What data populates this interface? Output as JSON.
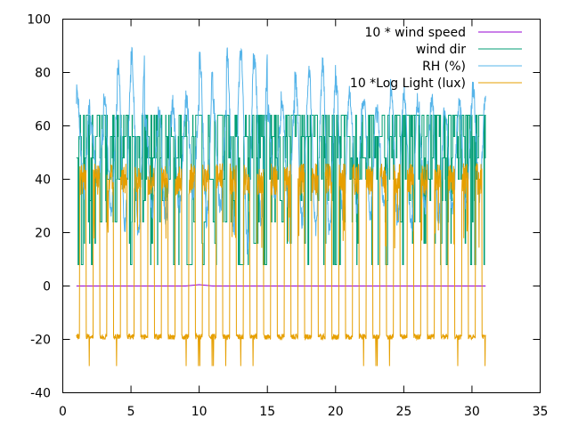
{
  "chart_data": {
    "type": "line",
    "title": "",
    "xlabel": "",
    "ylabel": "",
    "xlim": [
      0,
      35
    ],
    "ylim": [
      -40,
      100
    ],
    "x_ticks": [
      "0",
      "5",
      "10",
      "15",
      "20",
      "25",
      "30",
      "35"
    ],
    "y_ticks": [
      "-40",
      "-20",
      "0",
      "20",
      "40",
      "60",
      "80",
      "100"
    ],
    "grid": false,
    "legend_position": "top-right",
    "x_range_data": [
      1.0,
      31.0
    ],
    "series": [
      {
        "name": "10 * wind speed",
        "color": "#9400d3",
        "pattern": "near_zero",
        "approx_values": [
          0,
          0,
          0,
          0,
          0,
          0,
          0,
          0,
          0,
          0.5,
          0,
          0,
          0,
          0,
          0,
          0,
          0,
          0,
          0,
          0,
          0,
          0,
          0,
          0,
          0,
          0,
          0,
          0,
          0,
          0,
          0
        ]
      },
      {
        "name": "wind dir",
        "color": "#009e73",
        "pattern": "stepped",
        "levels": [
          8,
          16,
          24,
          32,
          40,
          48,
          56,
          64
        ],
        "typical_range": [
          8,
          64
        ]
      },
      {
        "name": "RH (%)",
        "color": "#56b4e9",
        "pattern": "daily_cycle",
        "daily_max": [
          72,
          60,
          70,
          82,
          86,
          62,
          66,
          68,
          70,
          85,
          68,
          86,
          88,
          85,
          65,
          70,
          78,
          80,
          82,
          75,
          72,
          70,
          65,
          75,
          72,
          68,
          70,
          65,
          70,
          75
        ],
        "daily_min": [
          36,
          40,
          30,
          22,
          20,
          28,
          25,
          30,
          35,
          25,
          30,
          20,
          15,
          25,
          35,
          30,
          25,
          22,
          20,
          25,
          30,
          28,
          30,
          25,
          22,
          30,
          25,
          28,
          30,
          35
        ]
      },
      {
        "name": "10 *Log Light (lux)",
        "color": "#e69f00",
        "pattern": "day_night",
        "day_level": 46,
        "night_level": -19,
        "night_spikes": [
          -30,
          -20,
          -30,
          -20,
          -20,
          -20,
          -20,
          -20,
          -30,
          -30,
          -30,
          -20,
          -30,
          -20,
          -20,
          -20,
          -20,
          -20,
          -20,
          -20,
          -20,
          -30,
          -30,
          -20,
          -20,
          -20,
          -20,
          -30,
          -20,
          -30
        ]
      }
    ]
  }
}
